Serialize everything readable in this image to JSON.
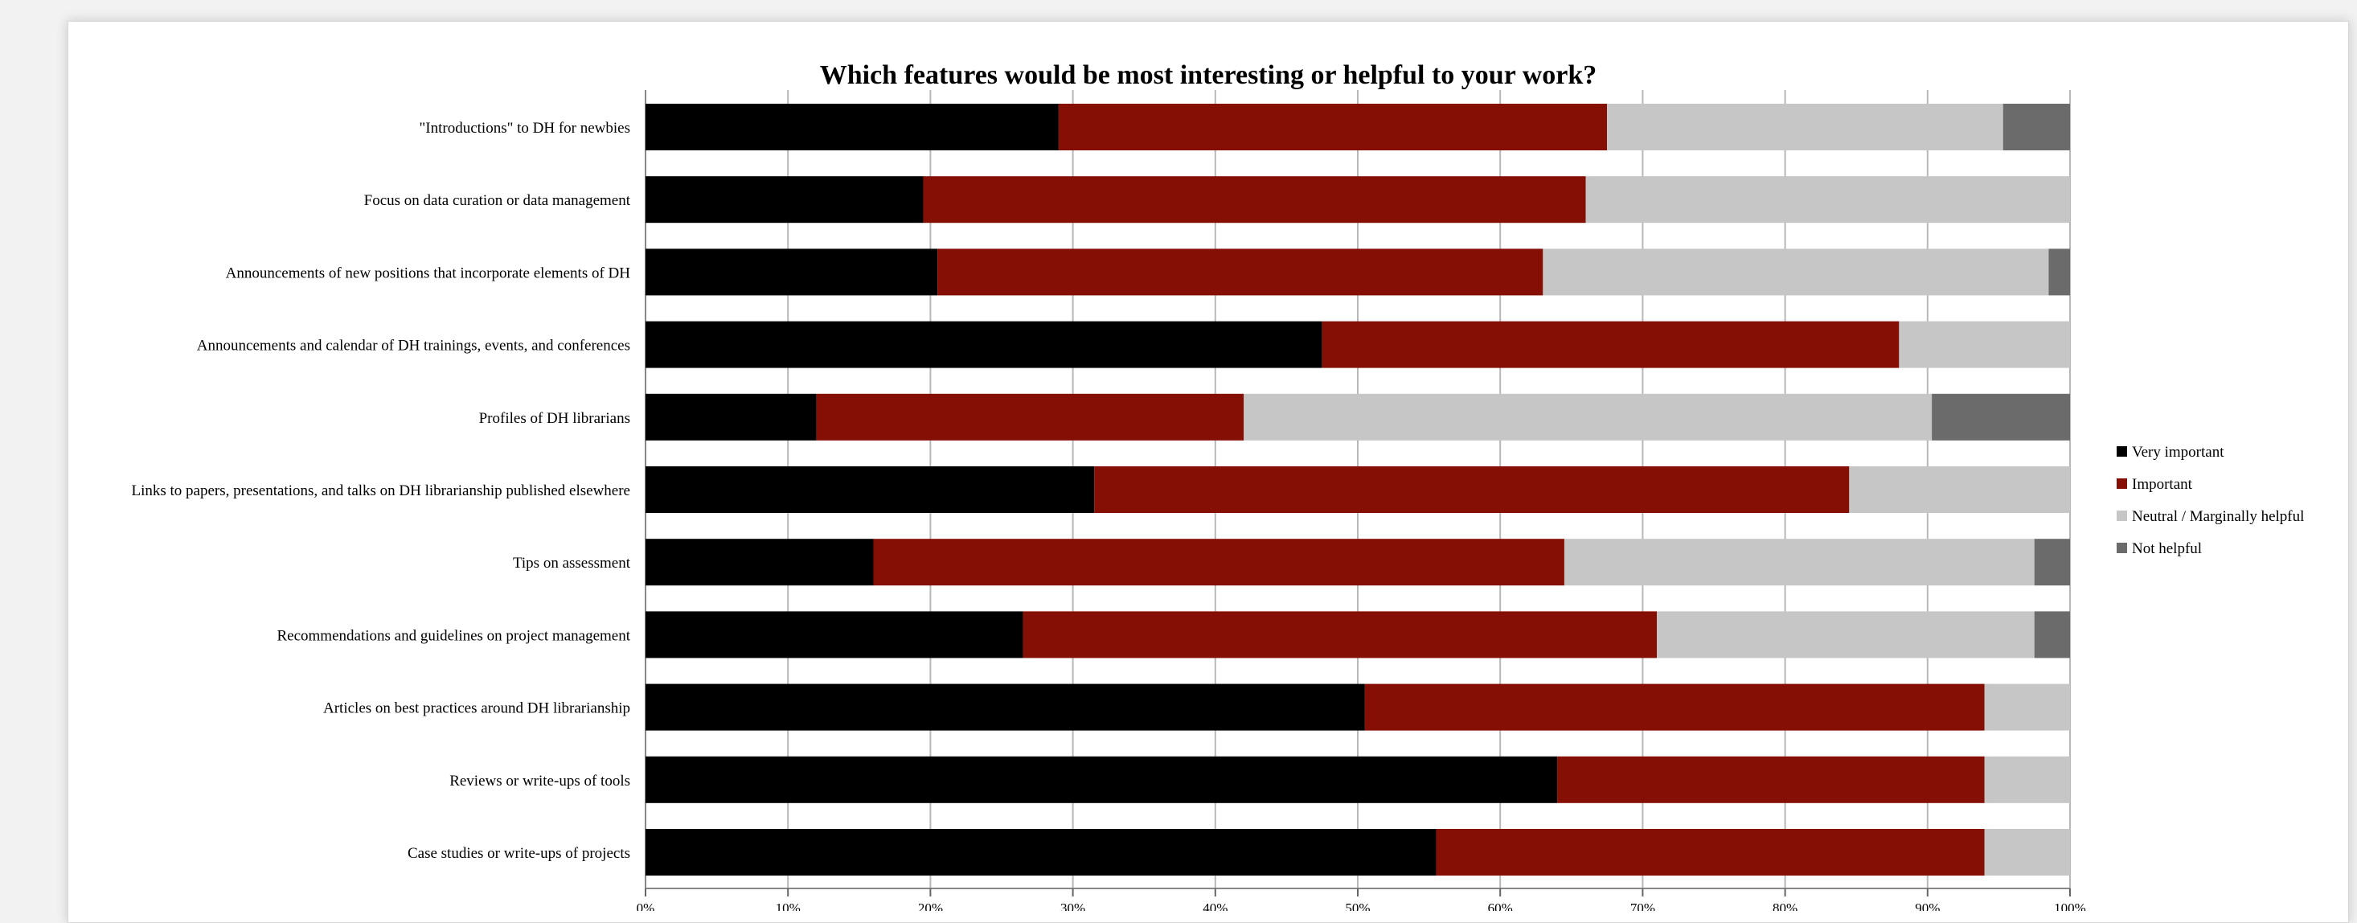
{
  "chart_data": {
    "type": "bar",
    "orientation": "horizontal",
    "stacked": "percent",
    "title": "Which features would be most interesting or helpful to your work?",
    "xlabel": "",
    "ylabel": "",
    "xlim": [
      0,
      100
    ],
    "xticks": [
      "0%",
      "10%",
      "20%",
      "30%",
      "40%",
      "50%",
      "60%",
      "70%",
      "80%",
      "90%",
      "100%"
    ],
    "grid": "vertical",
    "legend": "right",
    "categories": [
      "\"Introductions\" to DH for newbies",
      "Focus on data curation or data management",
      "Announcements of new positions that incorporate elements of DH",
      "Announcements and calendar of DH trainings, events, and conferences",
      "Profiles of DH librarians",
      "Links to papers, presentations, and talks on DH librarianship published elsewhere",
      "Tips on assessment",
      "Recommendations and guidelines on project management",
      "Articles on best practices around DH librarianship",
      "Reviews or write-ups of tools",
      "Case studies or write-ups of projects"
    ],
    "series": [
      {
        "name": "Very important",
        "color": "#000000",
        "values": [
          29,
          19.5,
          20.5,
          47.5,
          12,
          31.5,
          16,
          26.5,
          50.5,
          64,
          55.5
        ]
      },
      {
        "name": "Important",
        "color": "#850f04",
        "values": [
          38.5,
          46.5,
          42.5,
          40.5,
          30,
          53,
          48.5,
          44.5,
          43.5,
          30,
          38.5
        ]
      },
      {
        "name": "Neutral / Marginally helpful",
        "color": "#c6c6c6",
        "values": [
          27.8,
          34,
          35.5,
          12,
          48.3,
          15.5,
          33,
          26.5,
          6,
          6,
          6
        ]
      },
      {
        "name": "Not helpful",
        "color": "#6b6b6b",
        "values": [
          4.7,
          0,
          1.5,
          0,
          9.7,
          0,
          2.5,
          2.5,
          0,
          0,
          0
        ]
      }
    ]
  }
}
